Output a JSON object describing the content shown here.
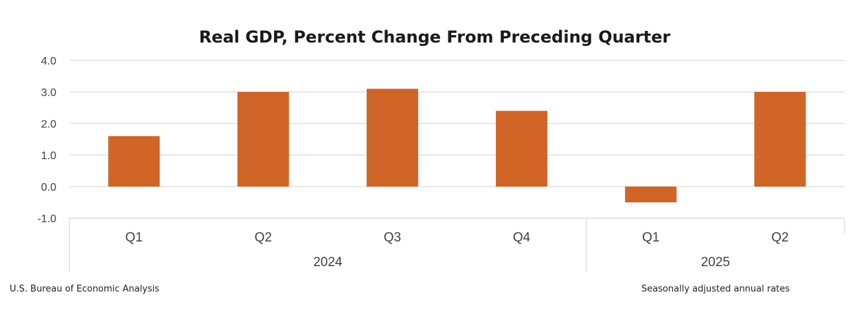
{
  "chart_data": {
    "type": "bar",
    "title": "Real GDP, Percent Change From Preceding Quarter",
    "xlabel": "",
    "ylabel": "",
    "ylim": [
      -1.0,
      4.0
    ],
    "yticks": [
      "4.0",
      "3.0",
      "2.0",
      "1.0",
      "0.0",
      "-1.0"
    ],
    "ytick_values": [
      4.0,
      3.0,
      2.0,
      1.0,
      0.0,
      -1.0
    ],
    "grid": true,
    "categories": [
      "Q1",
      "Q2",
      "Q3",
      "Q4",
      "Q1",
      "Q2"
    ],
    "groups": [
      {
        "label": "2024",
        "count": 4
      },
      {
        "label": "2025",
        "count": 2
      }
    ],
    "values": [
      1.6,
      3.0,
      3.1,
      2.4,
      -0.5,
      3.0
    ],
    "bar_color": "#d06527",
    "source_note": "U.S. Bureau of Economic Analysis",
    "rate_note": "Seasonally adjusted annual rates"
  }
}
